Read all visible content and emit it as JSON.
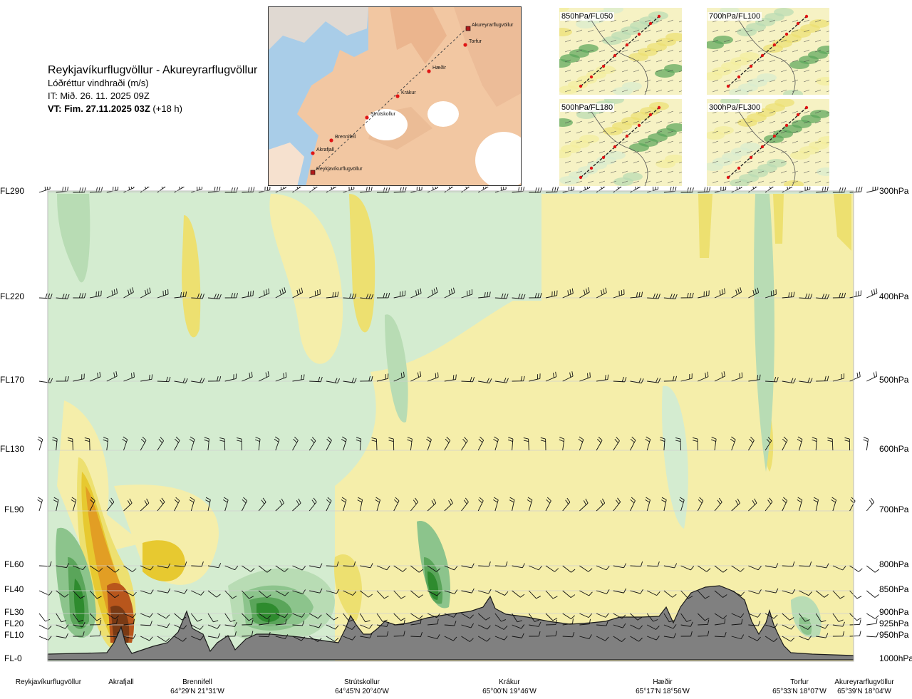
{
  "title": {
    "route": "Reykjavíkurflugvöllur - Akureyrarflugvöllur",
    "variable": "Lóðréttur vindhraði (m/s)",
    "it": "IT: Mið. 26. 11. 2025 09Z",
    "vt_bold": "VT: Fim. 27.11.2025 03Z",
    "vt_rest": " (+18 h)"
  },
  "map": {
    "places": [
      {
        "name": "Akureyrarflugvöllur",
        "kind": "airport"
      },
      {
        "name": "Torfur",
        "kind": "point"
      },
      {
        "name": "Hæðir",
        "kind": "point"
      },
      {
        "name": "Krákur",
        "kind": "point"
      },
      {
        "name": "Strútskollur",
        "kind": "point"
      },
      {
        "name": "Brennifell",
        "kind": "point"
      },
      {
        "name": "Akrafjall",
        "kind": "point"
      },
      {
        "name": "Reykjavíkurflugvöllur",
        "kind": "airport"
      }
    ]
  },
  "thumbnails": [
    {
      "label": "850hPa/FL050"
    },
    {
      "label": "700hPa/FL100"
    },
    {
      "label": "500hPa/FL180"
    },
    {
      "label": "300hPa/FL300"
    }
  ],
  "chart_data": {
    "type": "heatmap",
    "title": "Lóðréttur vindhraði (m/s)",
    "left_axis": [
      "FL290",
      "FL220",
      "FL170",
      "FL130",
      "FL90",
      "FL60",
      "FL40",
      "FL30",
      "FL20",
      "FL10",
      "FL-0"
    ],
    "right_axis": [
      "300hPa",
      "400hPa",
      "500hPa",
      "600hPa",
      "700hPa",
      "800hPa",
      "850hPa",
      "900hPa",
      "925hPa",
      "950hPa",
      "1000hPa"
    ],
    "pressure_levels_hpa": [
      300,
      400,
      500,
      600,
      700,
      800,
      850,
      900,
      925,
      950,
      1000
    ],
    "grid": true,
    "legend": "none",
    "locations": [
      {
        "name": "Reykjavíkurflugvöllur",
        "coords": ""
      },
      {
        "name": "Akrafjall",
        "coords": ""
      },
      {
        "name": "Brennifell",
        "coords": "64°29'N 21°31'W"
      },
      {
        "name": "Strútskollur",
        "coords": "64°45'N 20°40'W"
      },
      {
        "name": "Krákur",
        "coords": "65°00'N 19°46'W"
      },
      {
        "name": "Hæðir",
        "coords": "65°17'N 18°56'W"
      },
      {
        "name": "Torfur",
        "coords": "65°33'N 18°07'W"
      },
      {
        "name": "Akureyrarflugvöllur",
        "coords": "65°39'N 18°04'W"
      }
    ],
    "color_classes": {
      "strong_up": "#2e8b2e",
      "up_3": "#5aa55a",
      "up_2": "#8cc48c",
      "up_1": "#b8dcb4",
      "weak_up": "#d4ecd0",
      "neutral": "#fafae8",
      "weak_down": "#f5eeaa",
      "down_1": "#ede070",
      "down_2": "#e7c930",
      "down_3": "#e29e24",
      "strong_down": "#b8561c",
      "extreme_down": "#7a3a14"
    },
    "terrain_color": "#808080"
  }
}
